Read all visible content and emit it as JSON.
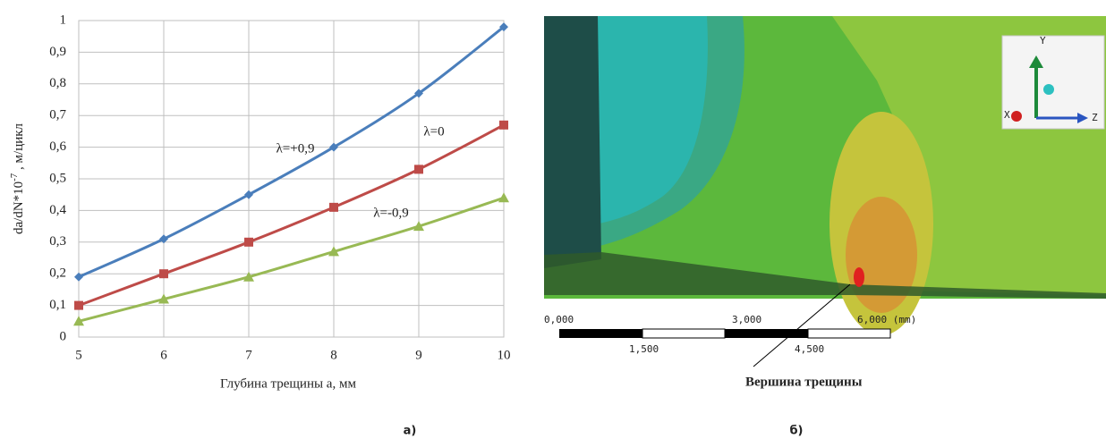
{
  "chart_data": {
    "type": "line",
    "xlabel": "Глубина трещины a, мм",
    "ylabel": {
      "base": "da/dN*10",
      "sup": "-7",
      "unit": " , м/цикл"
    },
    "x": [
      5,
      6,
      7,
      8,
      9,
      10
    ],
    "xlim": [
      5,
      10
    ],
    "xticks": [
      5,
      6,
      7,
      8,
      9,
      10
    ],
    "ylim": [
      0,
      1
    ],
    "yticks": [
      0,
      {
        "value": 0.1,
        "label": "0,1"
      },
      {
        "value": 0.2,
        "label": "0,2"
      },
      {
        "value": 0.3,
        "label": "0,3"
      },
      {
        "value": 0.4,
        "label": "0,4"
      },
      {
        "value": 0.5,
        "label": "0,5"
      },
      {
        "value": 0.6,
        "label": "0,6"
      },
      {
        "value": 0.7,
        "label": "0,7"
      },
      {
        "value": 0.8,
        "label": "0,8"
      },
      {
        "value": 0.9,
        "label": "0,9"
      },
      1
    ],
    "grid": true,
    "series": [
      {
        "name": "λ=+0,9",
        "color": "#4a7ebb",
        "marker": "diamond",
        "values": [
          0.19,
          0.31,
          0.45,
          0.6,
          0.77,
          0.98
        ]
      },
      {
        "name": "λ=0",
        "color": "#be4b48",
        "marker": "square",
        "values": [
          0.1,
          0.2,
          0.3,
          0.41,
          0.53,
          0.67
        ]
      },
      {
        "name": "λ=-0,9",
        "color": "#98b954",
        "marker": "triangle",
        "values": [
          0.05,
          0.12,
          0.19,
          0.27,
          0.35,
          0.44
        ]
      }
    ]
  },
  "captions": [
    "а)",
    "б)"
  ],
  "figure_b": {
    "scale_top": [
      "0,000",
      "3,000",
      "6,000 (mm)"
    ],
    "scale_bottom": [
      "1,500",
      "4,500"
    ],
    "callout": "Вершина трещины",
    "axes": [
      "Y",
      "Z",
      "X"
    ]
  }
}
